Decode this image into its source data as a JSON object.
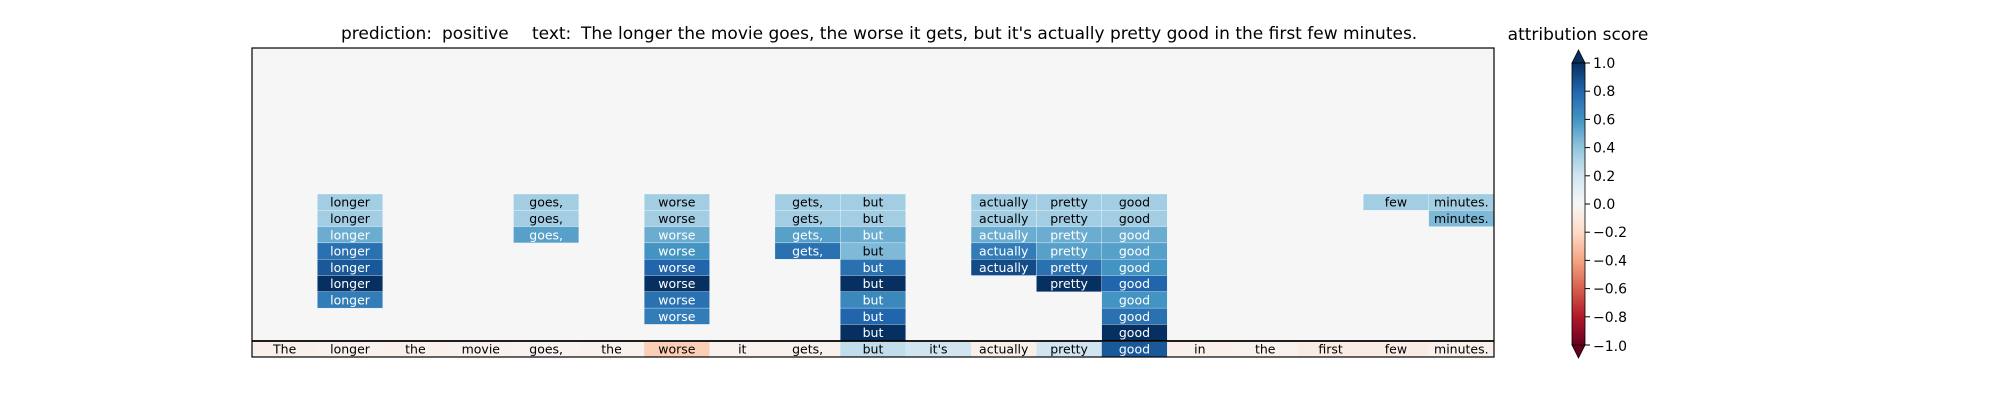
{
  "chart_data": {
    "type": "heatmap",
    "title_prediction_label": "prediction:",
    "prediction": "positive",
    "title_text_label": "text:",
    "text": "The longer the movie goes, the worse it gets, but it's actually pretty good in the first few minutes.",
    "tokens": [
      "The",
      "longer",
      "the",
      "movie",
      "goes,",
      "the",
      "worse",
      "it",
      "gets,",
      "but",
      "it's",
      "actually",
      "pretty",
      "good",
      "in",
      "the",
      "first",
      "few",
      "minutes."
    ],
    "base_row_scores": [
      -0.05,
      -0.04,
      -0.05,
      -0.04,
      -0.03,
      -0.04,
      -0.25,
      -0.04,
      -0.04,
      0.25,
      0.2,
      -0.06,
      0.2,
      0.85,
      -0.05,
      -0.04,
      -0.08,
      -0.08,
      -0.05
    ],
    "column_stacks": [
      [],
      [
        0.35,
        0.35,
        0.5,
        0.75,
        0.85,
        1.0,
        0.7
      ],
      [],
      [],
      [
        0.35,
        0.35,
        0.55
      ],
      [],
      [
        0.35,
        0.35,
        0.5,
        0.6,
        0.8,
        1.0,
        0.75,
        0.7
      ],
      [],
      [
        0.35,
        0.35,
        0.55,
        0.75
      ],
      [
        0.35,
        0.35,
        0.5,
        0.45,
        0.75,
        1.0,
        0.65,
        0.8,
        1.0
      ],
      [],
      [
        0.35,
        0.35,
        0.5,
        0.7,
        0.9
      ],
      [
        0.35,
        0.35,
        0.5,
        0.55,
        0.75,
        1.0
      ],
      [
        0.35,
        0.35,
        0.5,
        0.55,
        0.6,
        0.8,
        0.6,
        0.75,
        1.0
      ],
      [],
      [],
      [],
      [
        0.35
      ],
      [
        0.35,
        0.45
      ]
    ],
    "colorbar": {
      "title": "attribution score",
      "vmin": -1.0,
      "vmax": 1.0,
      "ticks": [
        1.0,
        0.8,
        0.6,
        0.4,
        0.2,
        0.0,
        -0.2,
        -0.4,
        -0.6,
        -0.8,
        -1.0
      ],
      "tick_labels": [
        "1.0",
        "0.8",
        "0.6",
        "0.4",
        "0.2",
        "0.0",
        "−0.2",
        "−0.4",
        "−0.6",
        "−0.8",
        "−1.0"
      ],
      "colormap": "RdBu"
    },
    "colors": {
      "background": "#f5f6f5",
      "frame": "#000000"
    }
  }
}
